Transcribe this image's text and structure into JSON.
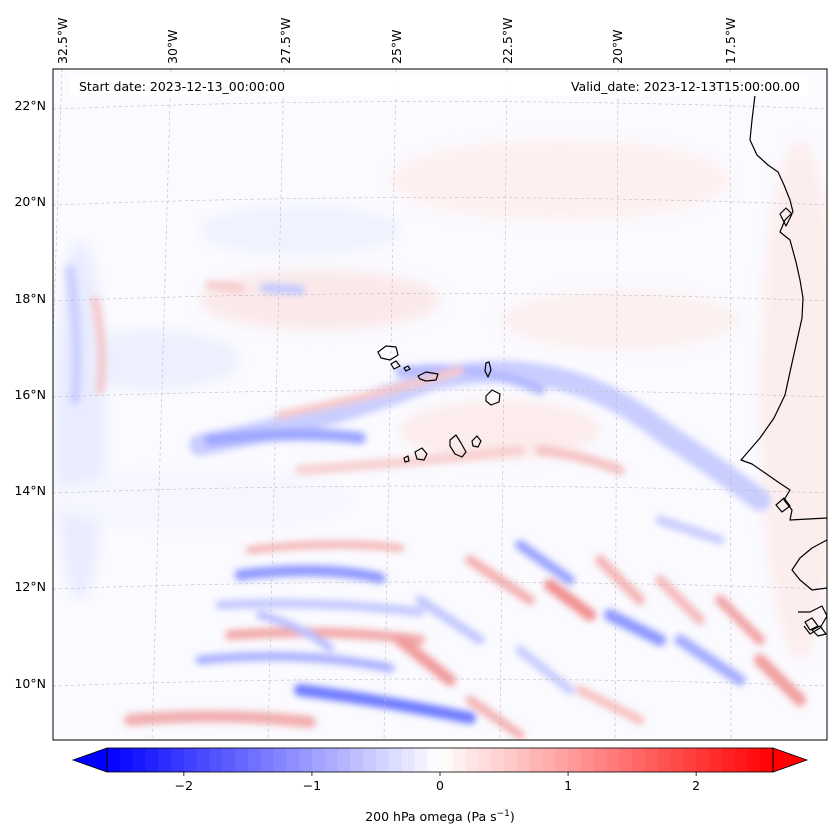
{
  "map": {
    "start_date_label": "Start date: 2023-12-13_00:00:00",
    "valid_date_label": "Valid_date: 2023-12-13T15:00:00.00",
    "field": "200 hPa omega",
    "colormap": "bwr",
    "extent": {
      "lon_min": -33.0,
      "lon_max": -15.5,
      "lat_min": 8.8,
      "lat_max": 22.8
    }
  },
  "lon_ticks": [
    {
      "value": -32.5,
      "label": "32.5°W"
    },
    {
      "value": -30.0,
      "label": "30°W"
    },
    {
      "value": -27.5,
      "label": "27.5°W"
    },
    {
      "value": -25.0,
      "label": "25°W"
    },
    {
      "value": -22.5,
      "label": "22.5°W"
    },
    {
      "value": -20.0,
      "label": "20°W"
    },
    {
      "value": -17.5,
      "label": "17.5°W"
    }
  ],
  "lat_ticks": [
    {
      "value": 22,
      "label": "22°N"
    },
    {
      "value": 20,
      "label": "20°N"
    },
    {
      "value": 18,
      "label": "18°N"
    },
    {
      "value": 16,
      "label": "16°N"
    },
    {
      "value": 14,
      "label": "14°N"
    },
    {
      "value": 12,
      "label": "12°N"
    },
    {
      "value": 10,
      "label": "10°N"
    }
  ],
  "colorbar": {
    "label_prefix": "200 hPa omega (Pa s",
    "label_exponent": "−1",
    "label_suffix": ")",
    "min": -2.6,
    "max": 2.6,
    "extend": "both",
    "ticks": [
      {
        "value": -2,
        "label": "−2"
      },
      {
        "value": -1,
        "label": "−1"
      },
      {
        "value": 0,
        "label": "0"
      },
      {
        "value": 1,
        "label": "1"
      },
      {
        "value": 2,
        "label": "2"
      }
    ]
  },
  "colors": {
    "negative": "#0000ff",
    "neutral": "#ffffff",
    "positive": "#ff0000",
    "coastline": "#000000",
    "gridline": "#bbbbbb"
  }
}
